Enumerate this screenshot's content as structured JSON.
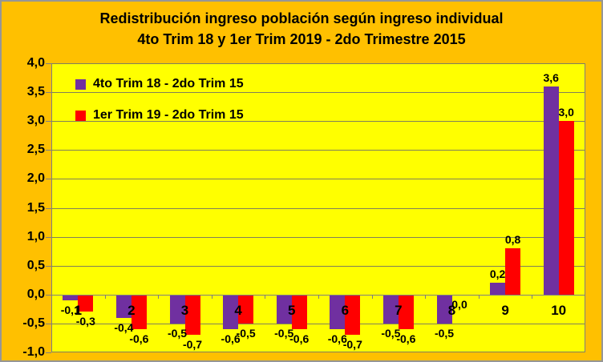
{
  "window": {
    "background": "#FFC000",
    "plot_background": "#FFFF00",
    "border_color": "#969696"
  },
  "chart_data": {
    "type": "bar",
    "title": "Redistribución ingreso población según ingreso individual 4to Trim 18 y 1er Trim 2019 - 2do Trimestre 2015",
    "title_line1": "Redistribución ingreso población según ingreso individual",
    "title_line2": "4to Trim 18 y 1er Trim 2019 - 2do Trimestre 2015",
    "categories": [
      "1",
      "2",
      "3",
      "4",
      "5",
      "6",
      "7",
      "8",
      "9",
      "10"
    ],
    "series": [
      {
        "name": "4to Trim 18 - 2do Trim 15",
        "color": "#7030A0",
        "values": [
          -0.1,
          -0.4,
          -0.5,
          -0.6,
          -0.5,
          -0.6,
          -0.5,
          -0.5,
          0.2,
          3.6
        ],
        "labels": [
          "-0,1",
          "-0,4",
          "-0,5",
          "-0,6",
          "-0,5",
          "-0,6",
          "-0,5",
          "-0,5",
          "0,2",
          "3,6"
        ]
      },
      {
        "name": "1er Trim 19 - 2do Trim 15",
        "color": "#FF0000",
        "values": [
          -0.3,
          -0.6,
          -0.7,
          -0.5,
          -0.6,
          -0.7,
          -0.6,
          0.0,
          0.8,
          3.0
        ],
        "labels": [
          "-0,3",
          "-0,6",
          "-0,7",
          "-0,5",
          "-0,6",
          "-0,7",
          "-0,6",
          "0,0",
          "0,8",
          "3,0"
        ]
      }
    ],
    "ylim": [
      -1.0,
      4.0
    ],
    "ytick_step": 0.5,
    "ytick_labels": [
      "4,0",
      "3,5",
      "3,0",
      "2,5",
      "2,0",
      "1,5",
      "1,0",
      "0,5",
      "0,0",
      "-0,5",
      "-1,0"
    ],
    "decimal_separator": ",",
    "grid": true,
    "gridline_color": "#80805A",
    "axis_color": "#7F7F7F",
    "legend_position": "top-left"
  }
}
